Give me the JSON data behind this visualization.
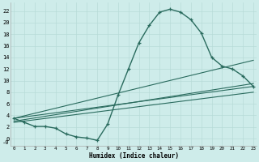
{
  "xlabel": "Humidex (Indice chaleur)",
  "background_color": "#ceecea",
  "grid_color": "#b8dbd8",
  "line_color": "#2a6b5e",
  "x_ticks": [
    0,
    1,
    2,
    3,
    4,
    5,
    6,
    7,
    8,
    9,
    10,
    11,
    12,
    13,
    14,
    15,
    16,
    17,
    18,
    19,
    20,
    21,
    22,
    23
  ],
  "y_ticks": [
    0,
    2,
    4,
    6,
    8,
    10,
    12,
    14,
    16,
    18,
    20,
    22
  ],
  "ylim": [
    -1.2,
    23.5
  ],
  "xlim": [
    -0.3,
    23.3
  ],
  "curve1_x": [
    0,
    1,
    2,
    3,
    4,
    5,
    6,
    7,
    8,
    9,
    10,
    11,
    12,
    13,
    14,
    15,
    16,
    17,
    18,
    19,
    20,
    21,
    22,
    23
  ],
  "curve1_y": [
    3.5,
    2.8,
    2.1,
    2.1,
    1.8,
    0.8,
    0.3,
    0.1,
    -0.3,
    2.5,
    7.5,
    12.0,
    16.5,
    19.5,
    21.8,
    22.3,
    21.8,
    20.5,
    18.2,
    14.0,
    12.5,
    12.0,
    10.8,
    9.0
  ],
  "curve2_x": [
    0,
    23
  ],
  "curve2_y": [
    3.5,
    9.0
  ],
  "curve3_x": [
    0,
    23
  ],
  "curve3_y": [
    3.5,
    13.5
  ],
  "curve4_x": [
    0,
    23
  ],
  "curve4_y": [
    3.0,
    9.5
  ],
  "curve5_x": [
    0,
    23
  ],
  "curve5_y": [
    2.8,
    8.0
  ]
}
